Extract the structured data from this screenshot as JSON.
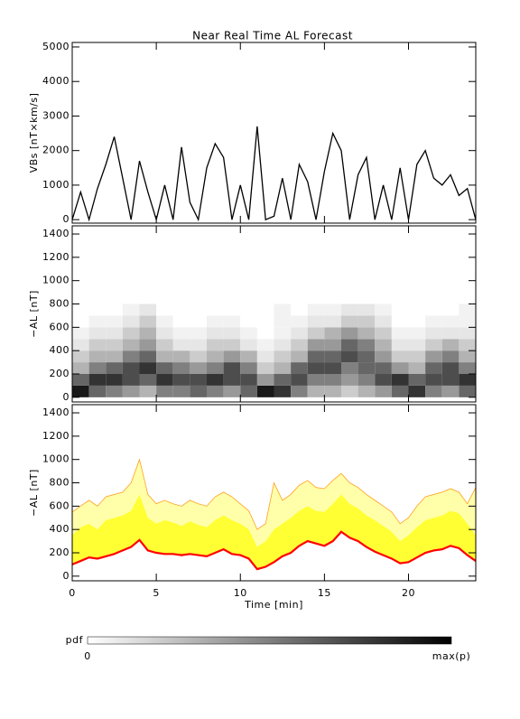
{
  "chart_data": [
    {
      "type": "line",
      "title": "Near Real Time AL Forecast",
      "ylabel": "VBs [nT×km/s]",
      "color": "#000000",
      "x": [
        0,
        0.5,
        1,
        1.5,
        2,
        2.5,
        3,
        3.5,
        4,
        4.5,
        5,
        5.5,
        6,
        6.5,
        7,
        7.5,
        8,
        8.5,
        9,
        9.5,
        10,
        10.5,
        11,
        11.5,
        12,
        12.5,
        13,
        13.5,
        14,
        14.5,
        15,
        15.5,
        16,
        16.5,
        17,
        17.5,
        18,
        18.5,
        19,
        19.5,
        20,
        20.5,
        21,
        21.5,
        22,
        22.5,
        23,
        23.5,
        24
      ],
      "values": [
        0,
        800,
        0,
        900,
        1600,
        2400,
        1200,
        0,
        1700,
        800,
        0,
        1000,
        0,
        2100,
        500,
        0,
        1500,
        2200,
        1800,
        0,
        1000,
        0,
        2700,
        0,
        100,
        1200,
        0,
        1600,
        1100,
        0,
        1400,
        2500,
        2000,
        0,
        1300,
        1800,
        0,
        1000,
        0,
        1500,
        0,
        1600,
        2000,
        1200,
        1000,
        1300,
        700,
        900,
        0
      ],
      "xlim": [
        0,
        24
      ],
      "xticks": [
        0,
        5,
        10,
        15,
        20
      ],
      "ylim": [
        -100,
        5130
      ],
      "yticks": [
        0,
        1000,
        2000,
        3000,
        4000,
        5000
      ]
    },
    {
      "type": "heatmap",
      "ylabel": "−AL [nT]",
      "x_bins": [
        0,
        1,
        2,
        3,
        4,
        5,
        6,
        7,
        8,
        9,
        10,
        11,
        12,
        13,
        14,
        15,
        16,
        17,
        18,
        19,
        20,
        21,
        22,
        23,
        24
      ],
      "y_bins": [
        0,
        100,
        200,
        300,
        400,
        500,
        600,
        700,
        800
      ],
      "z": [
        [
          0.9,
          0.6,
          0.5,
          0.4,
          0.3,
          0.5,
          0.5,
          0.6,
          0.5,
          0.4,
          0.6,
          0.9,
          0.8,
          0.5,
          0.3,
          0.3,
          0.2,
          0.3,
          0.4,
          0.6,
          0.8,
          0.5,
          0.4,
          0.6
        ],
        [
          0.6,
          0.8,
          0.8,
          0.7,
          0.6,
          0.8,
          0.7,
          0.7,
          0.8,
          0.7,
          0.7,
          0.4,
          0.6,
          0.7,
          0.5,
          0.5,
          0.4,
          0.5,
          0.7,
          0.8,
          0.6,
          0.7,
          0.7,
          0.8
        ],
        [
          0.3,
          0.5,
          0.6,
          0.7,
          0.8,
          0.6,
          0.5,
          0.4,
          0.5,
          0.7,
          0.5,
          0.2,
          0.3,
          0.6,
          0.7,
          0.7,
          0.5,
          0.6,
          0.6,
          0.4,
          0.3,
          0.6,
          0.7,
          0.5
        ],
        [
          0.2,
          0.3,
          0.3,
          0.5,
          0.6,
          0.3,
          0.3,
          0.2,
          0.3,
          0.4,
          0.3,
          0.1,
          0.2,
          0.3,
          0.6,
          0.6,
          0.7,
          0.6,
          0.4,
          0.2,
          0.2,
          0.4,
          0.5,
          0.3
        ],
        [
          0.1,
          0.2,
          0.2,
          0.3,
          0.4,
          0.2,
          0.1,
          0.1,
          0.2,
          0.2,
          0.1,
          0.05,
          0.1,
          0.2,
          0.4,
          0.4,
          0.6,
          0.5,
          0.3,
          0.1,
          0.1,
          0.2,
          0.3,
          0.2
        ],
        [
          0.05,
          0.1,
          0.1,
          0.2,
          0.3,
          0.1,
          0.05,
          0.05,
          0.1,
          0.1,
          0.05,
          0,
          0.05,
          0.1,
          0.2,
          0.3,
          0.4,
          0.3,
          0.2,
          0.05,
          0.05,
          0.1,
          0.1,
          0.1
        ],
        [
          0,
          0.05,
          0.05,
          0.1,
          0.2,
          0.05,
          0,
          0,
          0.05,
          0.05,
          0,
          0,
          0.05,
          0.05,
          0.1,
          0.1,
          0.2,
          0.2,
          0.1,
          0,
          0,
          0.05,
          0.05,
          0.05
        ],
        [
          0,
          0,
          0,
          0.05,
          0.1,
          0,
          0,
          0,
          0,
          0,
          0,
          0,
          0.05,
          0,
          0.05,
          0.05,
          0.1,
          0.1,
          0.05,
          0,
          0,
          0,
          0,
          0.05
        ]
      ],
      "xlim": [
        0,
        24
      ],
      "xticks": [
        0,
        5,
        10,
        15,
        20
      ],
      "ylim": [
        -40,
        1470
      ],
      "yticks": [
        0,
        200,
        400,
        600,
        800,
        1000,
        1200,
        1400
      ],
      "colorbar": {
        "label": "pdf",
        "min_label": "0",
        "max_label": "max(p)"
      }
    },
    {
      "type": "band",
      "ylabel": "−AL [nT]",
      "xlabel": "Time [min]",
      "x": [
        0,
        0.5,
        1,
        1.5,
        2,
        2.5,
        3,
        3.5,
        4,
        4.5,
        5,
        5.5,
        6,
        6.5,
        7,
        7.5,
        8,
        8.5,
        9,
        9.5,
        10,
        10.5,
        11,
        11.5,
        12,
        12.5,
        13,
        13.5,
        14,
        14.5,
        15,
        15.5,
        16,
        16.5,
        17,
        17.5,
        18,
        18.5,
        19,
        19.5,
        20,
        20.5,
        21,
        21.5,
        22,
        22.5,
        23,
        23.5,
        24
      ],
      "line": {
        "color": "#ff0000",
        "values": [
          100,
          130,
          160,
          150,
          170,
          190,
          220,
          250,
          310,
          220,
          200,
          190,
          190,
          180,
          190,
          180,
          170,
          200,
          230,
          190,
          180,
          150,
          60,
          80,
          120,
          170,
          200,
          260,
          300,
          280,
          260,
          300,
          380,
          330,
          300,
          250,
          210,
          180,
          150,
          110,
          120,
          160,
          200,
          220,
          230,
          260,
          240,
          180,
          130
        ]
      },
      "inner_upper": {
        "color": "#ffff33",
        "values": [
          350,
          420,
          450,
          400,
          480,
          500,
          520,
          560,
          700,
          500,
          450,
          480,
          460,
          430,
          470,
          440,
          420,
          480,
          520,
          480,
          450,
          400,
          250,
          300,
          400,
          450,
          500,
          560,
          600,
          560,
          550,
          620,
          700,
          620,
          580,
          520,
          480,
          430,
          380,
          300,
          350,
          420,
          480,
          500,
          520,
          560,
          540,
          450,
          350
        ]
      },
      "outer_upper": {
        "color": "#ffffaa",
        "edge": "#ffa020",
        "values": [
          550,
          600,
          650,
          600,
          680,
          700,
          720,
          800,
          1000,
          700,
          620,
          650,
          620,
          600,
          650,
          620,
          600,
          680,
          720,
          680,
          620,
          560,
          400,
          450,
          800,
          650,
          700,
          780,
          820,
          760,
          750,
          820,
          880,
          800,
          760,
          700,
          650,
          600,
          550,
          450,
          500,
          600,
          680,
          700,
          720,
          750,
          720,
          620,
          760
        ]
      },
      "xlim": [
        0,
        24
      ],
      "xticks": [
        0,
        5,
        10,
        15,
        20
      ],
      "ylim": [
        -40,
        1470
      ],
      "yticks": [
        0,
        200,
        400,
        600,
        800,
        1000,
        1200,
        1400
      ]
    }
  ]
}
